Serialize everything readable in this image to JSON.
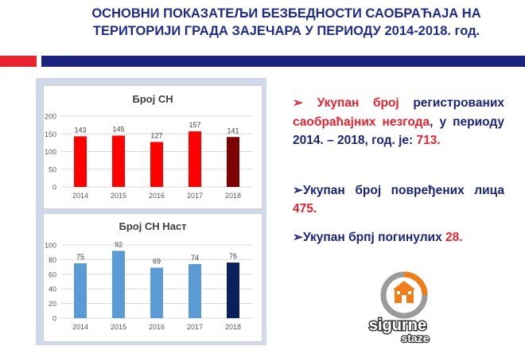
{
  "header": {
    "title_line1": "ОСНОВНИ ПОКАЗАТЕЉИ БЕЗБЕДНОСТИ САОБРАЋАЈА НА",
    "title_line2": "ТЕРИТОРИЈИ ГРАДА ЗАЈЕЧАРА У ПЕРИОДУ 2014-2018. год."
  },
  "colors": {
    "accent_red": "#e8232f",
    "accent_blue": "#1a237e"
  },
  "chart_data": [
    {
      "type": "bar",
      "title": "Број СН",
      "categories": [
        "2014",
        "2015",
        "2016",
        "2017",
        "2018"
      ],
      "values": [
        143,
        145,
        127,
        157,
        141
      ],
      "ylim": [
        0,
        200
      ],
      "yticks": [
        0,
        50,
        100,
        150,
        200
      ],
      "colors": [
        "#ff0000",
        "#ff0000",
        "#ff0000",
        "#ff0000",
        "#7f0000"
      ],
      "grid": true
    },
    {
      "type": "bar",
      "title": "Број СН Наст",
      "categories": [
        "2014",
        "2015",
        "2016",
        "2017",
        "2018"
      ],
      "values": [
        75,
        92,
        69,
        74,
        76
      ],
      "ylim": [
        0,
        100
      ],
      "yticks": [
        0,
        20,
        40,
        60,
        80,
        100
      ],
      "colors": [
        "#5b9bd5",
        "#5b9bd5",
        "#5b9bd5",
        "#5b9bd5",
        "#0a1f5c"
      ],
      "grid": true
    }
  ],
  "bullets": {
    "b1_arrow": "➢",
    "b1_hl1": "Укупан број",
    "b1_t1": " регистрованих ",
    "b1_hl2": "саобраћајних незгода",
    "b1_t2": ", у периоду 2014. – 2018, год. је: ",
    "b1_hl3": "713.",
    "b2_arrow": "➢",
    "b2_t1": "Укупан број повређених лица ",
    "b2_hl": "475.",
    "b3_arrow": "➢",
    "b3_t1": "Укупан брпј погинулих ",
    "b3_hl": "28."
  },
  "logo": {
    "text1": "sigurne",
    "text2": "staze"
  }
}
